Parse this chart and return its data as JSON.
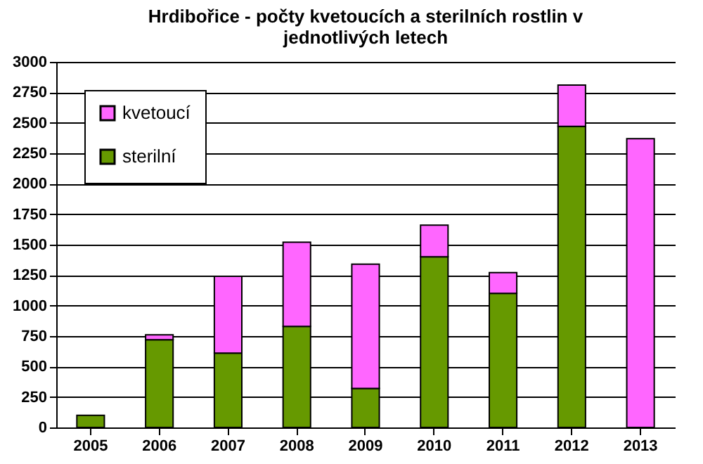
{
  "chart_data": {
    "type": "bar",
    "title": "Hrdibořice - počty kvetoucích a sterilních rostlin v jednotlivých letech",
    "categories": [
      "2005",
      "2006",
      "2007",
      "2008",
      "2009",
      "2010",
      "2011",
      "2012",
      "2013"
    ],
    "stacked": true,
    "series": [
      {
        "name": "sterilní",
        "color": "#669900",
        "values": [
          100,
          720,
          610,
          830,
          320,
          1400,
          1100,
          2470,
          null
        ]
      },
      {
        "name": "kvetoucí",
        "color": "#ff66ff",
        "values": [
          null,
          40,
          630,
          690,
          1020,
          260,
          170,
          340,
          2370
        ]
      }
    ],
    "ylim": [
      0,
      3000
    ],
    "yticks": [
      0,
      250,
      500,
      750,
      1000,
      1250,
      1500,
      1750,
      2000,
      2250,
      2500,
      2750,
      3000
    ],
    "grid": "y",
    "legend": "top left"
  }
}
